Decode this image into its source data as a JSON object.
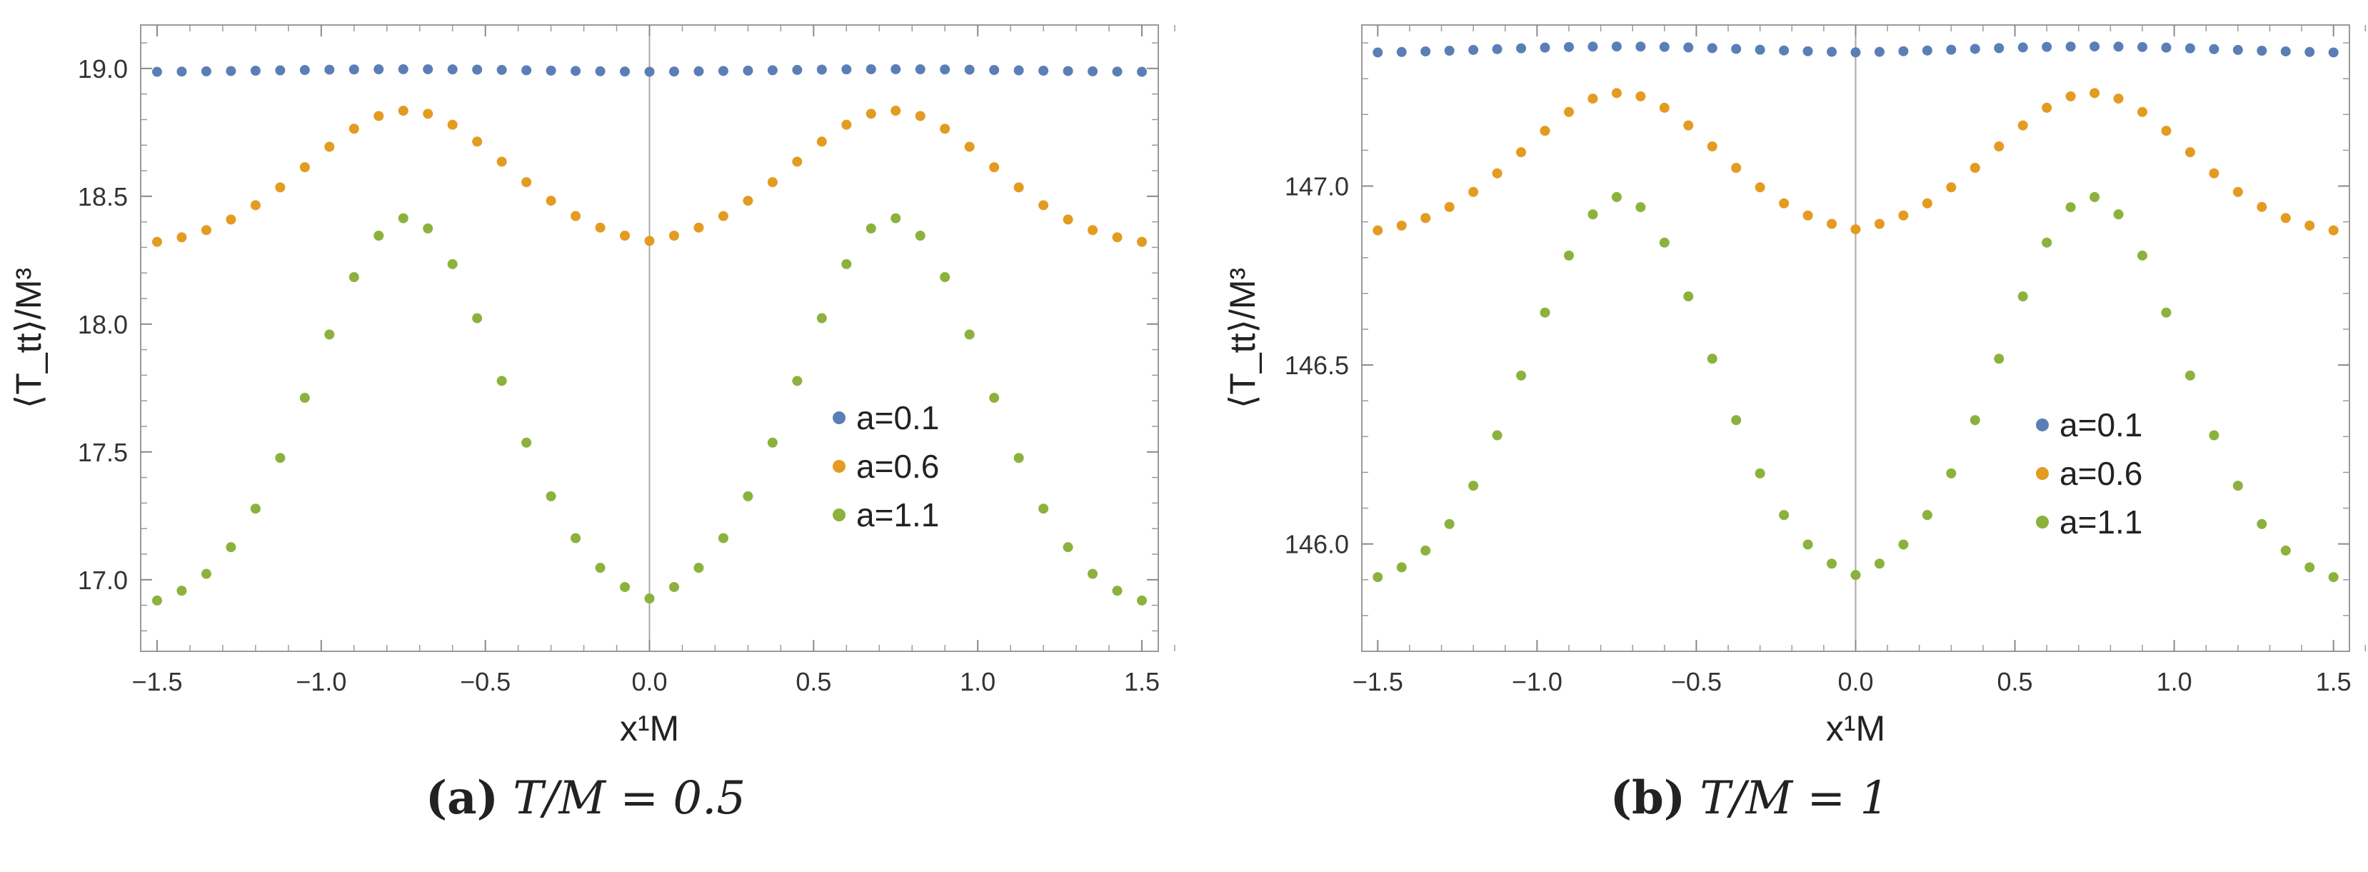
{
  "chart_data": [
    {
      "type": "scatter",
      "panel_label": "(a)",
      "caption_math": "T/M = 0.5",
      "xlabel": "x¹M",
      "ylabel": "⟨T_tt⟩/M³",
      "xlim": [
        -1.55,
        1.55
      ],
      "ylim": [
        16.72,
        19.17
      ],
      "xticks": [
        -1.5,
        -1.0,
        -0.5,
        0.0,
        0.5,
        1.0,
        1.5
      ],
      "xtick_labels": [
        "−1.5",
        "−1.0",
        "−0.5",
        "0.0",
        "0.5",
        "1.0",
        "1.5"
      ],
      "yticks": [
        17.0,
        17.5,
        18.0,
        18.5,
        19.0
      ],
      "ytick_labels": [
        "17.0",
        "17.5",
        "18.0",
        "18.5",
        "19.0"
      ],
      "legend": {
        "position": "right",
        "entries": [
          "a=0.1",
          "a=0.6",
          "a=1.1"
        ]
      },
      "series": [
        {
          "name": "a=0.1",
          "color": "#5a7fb7",
          "model": {
            "base": 18.985,
            "amp": 0.012,
            "x0": 0.74,
            "sigma": 0.4
          }
        },
        {
          "name": "a=0.6",
          "color": "#e39b21",
          "model": {
            "base": 18.3,
            "amp": 0.535,
            "x0": 0.74,
            "sigma": 0.3
          }
        },
        {
          "name": "a=1.1",
          "color": "#8bb23d",
          "model": {
            "base": 16.88,
            "amp": 1.535,
            "x0": 0.74,
            "sigma": 0.28
          }
        }
      ]
    },
    {
      "type": "scatter",
      "panel_label": "(b)",
      "caption_math": "T/M = 1",
      "xlabel": "x¹M",
      "ylabel": "⟨T_tt⟩/M³",
      "xlim": [
        -1.55,
        1.55
      ],
      "ylim": [
        145.7,
        147.45
      ],
      "xticks": [
        -1.5,
        -1.0,
        -0.5,
        0.0,
        0.5,
        1.0,
        1.5
      ],
      "xtick_labels": [
        "−1.5",
        "−1.0",
        "−0.5",
        "0.0",
        "0.5",
        "1.0",
        "1.5"
      ],
      "yticks": [
        146.0,
        146.5,
        147.0
      ],
      "ytick_labels": [
        "146.0",
        "146.5",
        "147.0"
      ],
      "legend": {
        "position": "right",
        "entries": [
          "a=0.1",
          "a=0.6",
          "a=1.1"
        ]
      },
      "series": [
        {
          "name": "a=0.1",
          "color": "#5a7fb7",
          "model": {
            "base": 147.37,
            "amp": 0.02,
            "x0": 0.74,
            "sigma": 0.4
          }
        },
        {
          "name": "a=0.6",
          "color": "#e39b21",
          "model": {
            "base": 146.86,
            "amp": 0.4,
            "x0": 0.74,
            "sigma": 0.3
          }
        },
        {
          "name": "a=1.1",
          "color": "#8bb23d",
          "model": {
            "base": 145.88,
            "amp": 1.09,
            "x0": 0.74,
            "sigma": 0.28
          }
        }
      ]
    }
  ]
}
